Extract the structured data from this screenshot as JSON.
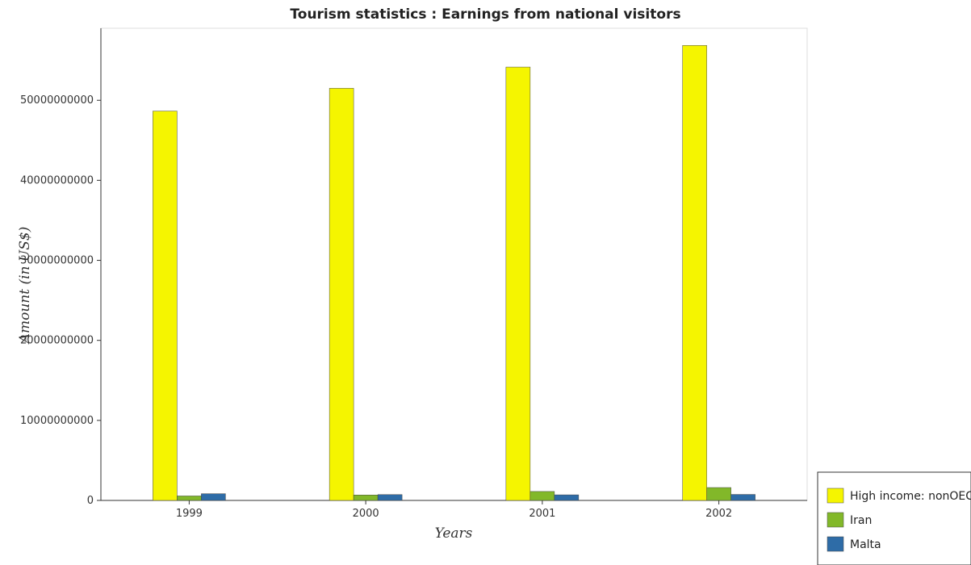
{
  "title": "Tourism statistics : Earnings from national visitors",
  "colors": {
    "High income: nonOECD": "#f5f500",
    "Iran": "#82b829",
    "Malta": "#2e6ca7"
  },
  "chart_data": {
    "type": "bar",
    "title": "Tourism statistics : Earnings from national visitors",
    "xlabel": "Years",
    "ylabel": "Amount (in US$)",
    "categories": [
      "1999",
      "2000",
      "2001",
      "2002"
    ],
    "ylim": [
      0,
      59000000000
    ],
    "yticks": [
      0,
      10000000000,
      20000000000,
      30000000000,
      40000000000,
      50000000000
    ],
    "ytick_labels": [
      "0",
      "10000000000",
      "20000000000",
      "30000000000",
      "40000000000",
      "50000000000"
    ],
    "series": [
      {
        "name": "High income: nonOECD",
        "values": [
          48650000000,
          51500000000,
          54150000000,
          56850000000
        ]
      },
      {
        "name": "Iran",
        "values": [
          560000000,
          680000000,
          1120000000,
          1610000000
        ]
      },
      {
        "name": "Malta",
        "values": [
          840000000,
          730000000,
          700000000,
          750000000
        ]
      }
    ],
    "legend_position": "bottom-right",
    "grid": false
  }
}
